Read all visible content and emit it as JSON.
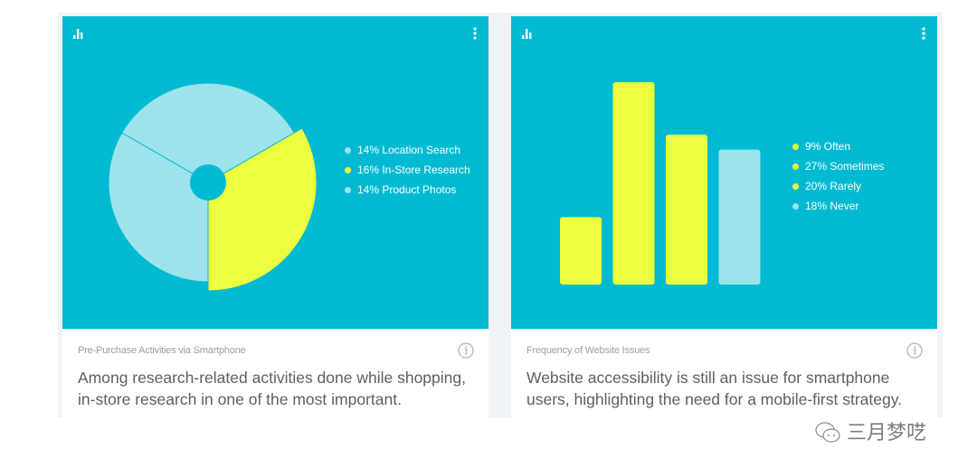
{
  "colors": {
    "card_background": "#00bad2",
    "highlight": "#ecff3f",
    "muted": "#9de3ec",
    "page_gutter": "#f1f4f7",
    "subtitle_text": "#9e9e9e",
    "description_text": "#5f5f5f"
  },
  "icons": {
    "chart": "bar-chart-icon",
    "menu": "more-vertical-icon",
    "info": "info-circle-icon"
  },
  "cards": [
    {
      "subtitle": "Pre-Purchase Activities via Smartphone",
      "description": "Among research-related activities done while shopping, in-store research in one of the most important.",
      "legend": [
        {
          "label": "14% Location Search",
          "color": "#9de3ec"
        },
        {
          "label": "16% In-Store Research",
          "color": "#ecff3f"
        },
        {
          "label": "14% Product Photos",
          "color": "#9de3ec"
        }
      ]
    },
    {
      "subtitle": "Frequency of Website Issues",
      "description": "Website accessibility is still an issue for smartphone users, highlighting the need for a mobile-first strategy.",
      "legend": [
        {
          "label": "9% Often",
          "color": "#ecff3f"
        },
        {
          "label": "27% Sometimes",
          "color": "#ecff3f"
        },
        {
          "label": "20% Rarely",
          "color": "#ecff3f"
        },
        {
          "label": "18% Never",
          "color": "#9de3ec"
        }
      ]
    }
  ],
  "watermark": {
    "text": "三月梦呓"
  },
  "chart_data": [
    {
      "type": "pie",
      "title": "Pre-Purchase Activities via Smartphone",
      "categories": [
        "Location Search",
        "In-Store Research",
        "Product Photos"
      ],
      "values": [
        14,
        16,
        14
      ],
      "unit": "%",
      "highlighted": [
        "In-Store Research"
      ],
      "colors": [
        "#9de3ec",
        "#ecff3f",
        "#9de3ec"
      ],
      "legend_position": "right"
    },
    {
      "type": "bar",
      "title": "Frequency of Website Issues",
      "categories": [
        "Often",
        "Sometimes",
        "Rarely",
        "Never"
      ],
      "values": [
        9,
        27,
        20,
        18
      ],
      "unit": "%",
      "colors": [
        "#ecff3f",
        "#ecff3f",
        "#ecff3f",
        "#9de3ec"
      ],
      "legend_position": "right",
      "grid": false,
      "ylim": [
        0,
        27
      ]
    }
  ]
}
